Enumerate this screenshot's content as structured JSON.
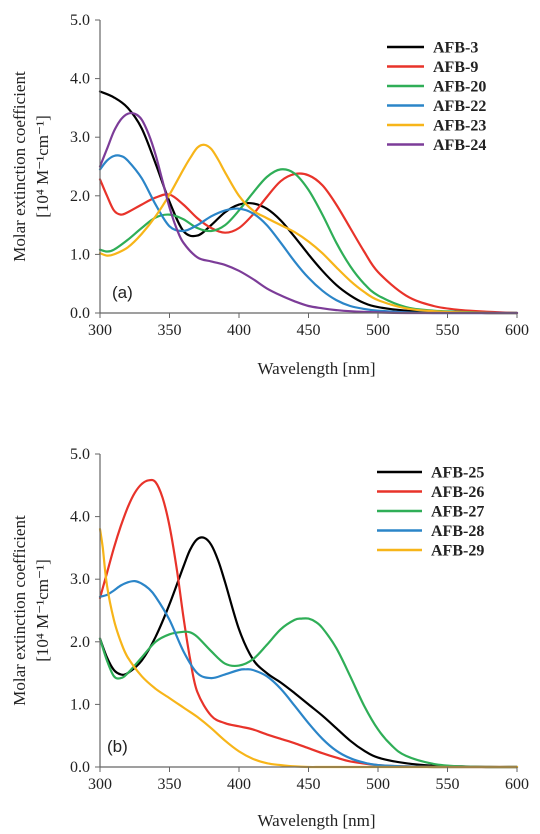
{
  "chart_data": [
    {
      "type": "line",
      "panel_label": "(a)",
      "xlabel": "Wavelength [nm]",
      "ylabel_line1": "Molar extinction coefficient",
      "ylabel_line2": "[10⁴ M⁻¹cm⁻¹]",
      "xlim": [
        300,
        600
      ],
      "ylim": [
        0,
        5
      ],
      "xticks": [
        300,
        350,
        400,
        450,
        500,
        550,
        600
      ],
      "yticks": [
        0,
        1,
        2,
        3,
        4,
        5
      ],
      "xtick_labels": [
        "300",
        "350",
        "400",
        "450",
        "500",
        "550",
        "600"
      ],
      "ytick_labels": [
        "0.0",
        "1.0",
        "2.0",
        "3.0",
        "4.0",
        "5.0"
      ],
      "legend_position": "top-right",
      "grid": false,
      "series": [
        {
          "name": "AFB-3",
          "color": "#000000",
          "x": [
            300,
            310,
            320,
            330,
            340,
            350,
            360,
            370,
            380,
            390,
            400,
            410,
            420,
            430,
            440,
            450,
            460,
            470,
            480,
            490,
            500,
            520,
            540,
            560,
            580,
            600
          ],
          "y": [
            3.78,
            3.68,
            3.5,
            3.15,
            2.55,
            1.9,
            1.4,
            1.32,
            1.5,
            1.72,
            1.85,
            1.87,
            1.78,
            1.58,
            1.3,
            1.0,
            0.72,
            0.48,
            0.3,
            0.17,
            0.1,
            0.04,
            0.02,
            0.01,
            0.0,
            0.0
          ]
        },
        {
          "name": "AFB-9",
          "color": "#e8332a",
          "x": [
            300,
            305,
            310,
            315,
            320,
            330,
            340,
            350,
            360,
            370,
            380,
            390,
            400,
            410,
            420,
            430,
            440,
            450,
            460,
            470,
            480,
            490,
            500,
            520,
            540,
            560,
            580,
            600
          ],
          "y": [
            2.28,
            2.0,
            1.75,
            1.68,
            1.72,
            1.85,
            1.97,
            2.02,
            1.85,
            1.62,
            1.45,
            1.37,
            1.45,
            1.68,
            1.98,
            2.25,
            2.37,
            2.35,
            2.18,
            1.85,
            1.45,
            1.05,
            0.7,
            0.3,
            0.12,
            0.05,
            0.02,
            0.0
          ]
        },
        {
          "name": "AFB-20",
          "color": "#2fae57",
          "x": [
            300,
            305,
            310,
            320,
            330,
            340,
            350,
            360,
            370,
            380,
            390,
            400,
            410,
            420,
            430,
            440,
            450,
            460,
            470,
            480,
            490,
            500,
            520,
            540,
            560,
            580,
            600
          ],
          "y": [
            1.08,
            1.05,
            1.08,
            1.25,
            1.45,
            1.63,
            1.68,
            1.6,
            1.45,
            1.4,
            1.5,
            1.75,
            2.05,
            2.32,
            2.45,
            2.38,
            2.1,
            1.68,
            1.2,
            0.8,
            0.5,
            0.3,
            0.1,
            0.04,
            0.02,
            0.0,
            0.0
          ]
        },
        {
          "name": "AFB-22",
          "color": "#2b85c8",
          "x": [
            300,
            305,
            310,
            315,
            320,
            330,
            340,
            350,
            360,
            370,
            380,
            390,
            400,
            410,
            420,
            430,
            440,
            450,
            460,
            470,
            480,
            490,
            500,
            520,
            540,
            560,
            580,
            600
          ],
          "y": [
            2.45,
            2.6,
            2.68,
            2.68,
            2.6,
            2.3,
            1.85,
            1.48,
            1.4,
            1.5,
            1.65,
            1.75,
            1.78,
            1.7,
            1.5,
            1.2,
            0.88,
            0.6,
            0.38,
            0.22,
            0.12,
            0.07,
            0.04,
            0.01,
            0.0,
            0.0,
            0.0,
            0.0
          ]
        },
        {
          "name": "AFB-23",
          "color": "#f7b519",
          "x": [
            300,
            305,
            310,
            320,
            330,
            340,
            350,
            360,
            365,
            370,
            375,
            380,
            385,
            390,
            400,
            410,
            420,
            430,
            440,
            450,
            460,
            470,
            480,
            490,
            500,
            520,
            540,
            560,
            580,
            600
          ],
          "y": [
            1.02,
            0.98,
            1.0,
            1.12,
            1.35,
            1.65,
            2.02,
            2.45,
            2.65,
            2.82,
            2.87,
            2.8,
            2.62,
            2.4,
            2.0,
            1.75,
            1.62,
            1.5,
            1.38,
            1.22,
            1.02,
            0.78,
            0.55,
            0.36,
            0.22,
            0.08,
            0.03,
            0.01,
            0.0,
            0.0
          ]
        },
        {
          "name": "AFB-24",
          "color": "#7c3c98",
          "x": [
            300,
            305,
            310,
            315,
            320,
            325,
            330,
            335,
            340,
            345,
            350,
            355,
            360,
            370,
            380,
            390,
            400,
            410,
            420,
            430,
            440,
            450,
            460,
            470,
            480,
            500,
            520,
            540,
            560,
            580,
            600
          ],
          "y": [
            2.5,
            2.8,
            3.1,
            3.3,
            3.4,
            3.4,
            3.3,
            3.05,
            2.7,
            2.25,
            1.8,
            1.45,
            1.2,
            0.95,
            0.88,
            0.82,
            0.72,
            0.58,
            0.42,
            0.3,
            0.2,
            0.12,
            0.08,
            0.05,
            0.03,
            0.01,
            0.0,
            0.0,
            0.0,
            0.0,
            0.0
          ]
        }
      ]
    },
    {
      "type": "line",
      "panel_label": "(b)",
      "xlabel": "Wavelength [nm]",
      "ylabel_line1": "Molar extinction coefficient",
      "ylabel_line2": "[10⁴ M⁻¹cm⁻¹]",
      "xlim": [
        300,
        600
      ],
      "ylim": [
        0,
        5
      ],
      "xticks": [
        300,
        350,
        400,
        450,
        500,
        550,
        600
      ],
      "yticks": [
        0,
        1,
        2,
        3,
        4,
        5
      ],
      "xtick_labels": [
        "300",
        "350",
        "400",
        "450",
        "500",
        "550",
        "600"
      ],
      "ytick_labels": [
        "0.0",
        "1.0",
        "2.0",
        "3.0",
        "4.0",
        "5.0"
      ],
      "legend_position": "top-right",
      "grid": false,
      "series": [
        {
          "name": "AFB-25",
          "color": "#000000",
          "x": [
            300,
            305,
            310,
            315,
            320,
            330,
            340,
            350,
            360,
            365,
            370,
            375,
            380,
            385,
            390,
            400,
            410,
            420,
            430,
            440,
            450,
            460,
            470,
            480,
            490,
            500,
            520,
            540,
            560,
            580,
            600
          ],
          "y": [
            2.05,
            1.75,
            1.55,
            1.48,
            1.5,
            1.7,
            2.08,
            2.6,
            3.2,
            3.48,
            3.64,
            3.66,
            3.55,
            3.3,
            2.95,
            2.2,
            1.72,
            1.5,
            1.35,
            1.18,
            1.0,
            0.82,
            0.62,
            0.42,
            0.26,
            0.15,
            0.06,
            0.02,
            0.01,
            0.0,
            0.0
          ]
        },
        {
          "name": "AFB-26",
          "color": "#e8332a",
          "x": [
            300,
            305,
            310,
            315,
            320,
            325,
            330,
            335,
            340,
            345,
            350,
            355,
            360,
            365,
            370,
            380,
            390,
            400,
            410,
            420,
            430,
            440,
            450,
            460,
            470,
            480,
            500,
            520,
            540,
            560,
            580,
            600
          ],
          "y": [
            2.7,
            3.1,
            3.5,
            3.85,
            4.15,
            4.38,
            4.52,
            4.58,
            4.55,
            4.3,
            3.85,
            3.2,
            2.4,
            1.7,
            1.2,
            0.82,
            0.7,
            0.65,
            0.6,
            0.52,
            0.45,
            0.38,
            0.3,
            0.22,
            0.15,
            0.09,
            0.03,
            0.01,
            0.0,
            0.0,
            0.0,
            0.0
          ]
        },
        {
          "name": "AFB-27",
          "color": "#2fae57",
          "x": [
            300,
            305,
            310,
            315,
            320,
            330,
            340,
            350,
            360,
            365,
            370,
            380,
            390,
            400,
            410,
            420,
            430,
            440,
            445,
            450,
            455,
            460,
            470,
            480,
            490,
            500,
            510,
            520,
            540,
            560,
            580,
            600
          ],
          "y": [
            2.05,
            1.7,
            1.45,
            1.42,
            1.5,
            1.75,
            2.0,
            2.12,
            2.16,
            2.15,
            2.08,
            1.85,
            1.65,
            1.62,
            1.72,
            1.95,
            2.2,
            2.35,
            2.37,
            2.37,
            2.32,
            2.22,
            1.9,
            1.45,
            0.98,
            0.6,
            0.34,
            0.18,
            0.05,
            0.01,
            0.0,
            0.0
          ]
        },
        {
          "name": "AFB-28",
          "color": "#2b85c8",
          "x": [
            300,
            305,
            310,
            315,
            320,
            325,
            330,
            335,
            340,
            350,
            360,
            370,
            380,
            390,
            400,
            405,
            410,
            420,
            430,
            440,
            450,
            460,
            470,
            480,
            490,
            500,
            520,
            540,
            560,
            580,
            600
          ],
          "y": [
            2.72,
            2.75,
            2.82,
            2.9,
            2.95,
            2.97,
            2.93,
            2.85,
            2.72,
            2.35,
            1.85,
            1.5,
            1.42,
            1.48,
            1.55,
            1.56,
            1.55,
            1.45,
            1.25,
            0.98,
            0.7,
            0.45,
            0.26,
            0.14,
            0.07,
            0.03,
            0.01,
            0.0,
            0.0,
            0.0,
            0.0
          ]
        },
        {
          "name": "AFB-29",
          "color": "#f7b519",
          "x": [
            300,
            302,
            305,
            310,
            315,
            320,
            330,
            340,
            350,
            360,
            370,
            380,
            390,
            400,
            410,
            420,
            430,
            440,
            450,
            460,
            480,
            500,
            520,
            540,
            560,
            580,
            600
          ],
          "y": [
            3.8,
            3.5,
            2.9,
            2.35,
            2.0,
            1.75,
            1.45,
            1.25,
            1.1,
            0.95,
            0.8,
            0.62,
            0.42,
            0.25,
            0.13,
            0.06,
            0.03,
            0.01,
            0.0,
            0.0,
            0.0,
            0.0,
            0.0,
            0.0,
            0.0,
            0.0,
            0.0
          ]
        }
      ]
    }
  ]
}
